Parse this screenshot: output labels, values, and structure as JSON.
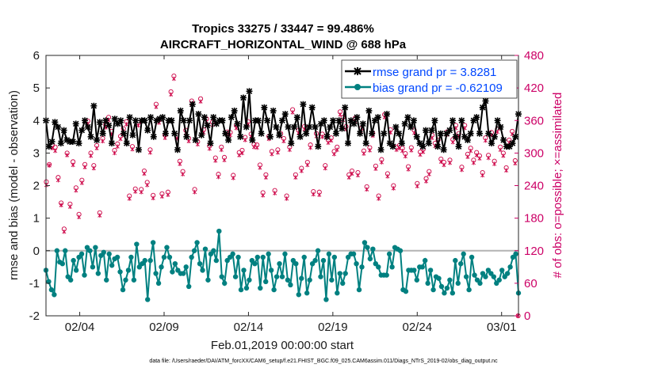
{
  "chart_data": {
    "type": "line",
    "title_line1": "Tropics 33275 / 33447 = 99.486%",
    "title_line2": "AIRCRAFT_HORIZONTAL_WIND @ 688 hPa",
    "xlabel": "Feb.01,2019 00:00:00 start",
    "ylabel_left": "rmse and bias (model - observation)",
    "ylabel_right": "# of obs: o=possible; ×=assimilated",
    "footer": "data file: /Users/raeder/DAI/ATM_forcXX/CAM6_setup/f.e21.FHIST_BGC.f09_025.CAM6assim.011/Diags_NTrS_2019-02/obs_diag_output.nc",
    "xlim": [
      1,
      29
    ],
    "ylim_left": [
      -2,
      6
    ],
    "ylim_right": [
      0,
      480
    ],
    "x_ticks": [
      3,
      8,
      13,
      18,
      23,
      28
    ],
    "x_tick_labels": [
      "02/04",
      "02/09",
      "02/14",
      "02/19",
      "02/24",
      "03/01"
    ],
    "y_left_ticks": [
      -2,
      -1,
      0,
      1,
      2,
      3,
      4,
      5,
      6
    ],
    "y_right_ticks": [
      0,
      60,
      120,
      180,
      240,
      300,
      360,
      420,
      480
    ],
    "colors": {
      "rmse": "#000000",
      "bias": "#008080",
      "obs": "#cc0044",
      "legend_text": "#0047ff",
      "zero_line": "#b3b3b3"
    },
    "series": [
      {
        "name": "rmse grand pr = 3.8281",
        "axis": "left",
        "values": [
          4.0,
          3.2,
          3.35,
          3.95,
          3.8,
          3.3,
          3.7,
          3.4,
          3.35,
          3.35,
          3.9,
          3.3,
          3.7,
          4.0,
          3.8,
          3.5,
          4.45,
          3.4,
          3.95,
          3.6,
          4.0,
          3.85,
          3.3,
          4.05,
          3.9,
          4.0,
          3.6,
          3.3,
          4.1,
          3.55,
          4.0,
          3.1,
          4.0,
          4.0,
          3.7,
          4.1,
          3.5,
          4.0,
          4.05,
          4.1,
          3.6,
          4.0,
          4.0,
          3.6,
          3.1,
          4.3,
          4.0,
          3.5,
          4.0,
          4.5,
          3.4,
          4.2,
          3.55,
          4.1,
          3.85,
          3.3,
          4.1,
          3.9,
          4.0,
          4.0,
          3.6,
          3.4,
          4.1,
          4.3,
          3.9,
          3.5,
          4.7,
          3.8,
          4.9,
          3.4,
          4.0,
          4.0,
          3.6,
          4.4,
          4.0,
          3.5,
          4.3,
          3.8,
          3.55,
          4.0,
          4.2,
          3.8,
          3.3,
          3.8,
          4.1,
          3.5,
          4.5,
          3.6,
          3.8,
          4.4,
          3.8,
          3.2,
          3.9,
          4.0,
          3.5,
          3.8,
          4.0,
          3.6,
          4.0,
          3.75,
          4.4,
          3.3,
          4.0,
          3.9,
          4.1,
          3.6,
          3.9,
          3.3,
          4.3,
          3.6,
          4.0,
          4.1,
          3.1,
          3.6,
          4.2,
          3.3,
          3.2,
          3.8,
          3.6,
          3.3,
          3.9,
          4.1,
          3.8,
          4.0,
          3.5,
          3.3,
          3.2,
          3.7,
          3.3,
          3.7,
          4.0,
          3.2,
          3.6,
          3.1,
          3.6,
          3.7,
          4.0,
          3.5,
          3.2,
          4.0,
          3.5,
          3.4,
          3.6,
          4.0,
          4.1,
          3.6,
          4.4,
          4.6,
          3.6,
          3.3,
          3.5,
          4.0,
          3.8,
          3.4,
          3.2,
          3.2,
          3.3,
          3.5,
          4.2
        ]
      },
      {
        "name": "bias grand pr = -0.62109",
        "axis": "left",
        "values": [
          -0.6,
          -0.95,
          -1.2,
          -1.35,
          0.0,
          -0.35,
          -0.4,
          0.0,
          -0.8,
          -0.9,
          -0.3,
          -0.6,
          -0.2,
          -0.1,
          -0.75,
          0.1,
          0.0,
          -0.5,
          0.1,
          -0.7,
          -0.15,
          -0.05,
          -0.9,
          -0.1,
          -0.45,
          -0.25,
          -0.2,
          -0.65,
          -1.2,
          -0.9,
          -0.6,
          -0.2,
          -0.9,
          0.2,
          -0.5,
          -0.4,
          -0.3,
          -1.5,
          -0.3,
          0.25,
          -0.7,
          -1.0,
          -0.5,
          -0.2,
          0.1,
          -0.2,
          -0.65,
          -0.4,
          -0.6,
          -0.7,
          -0.7,
          -0.5,
          -1.1,
          -0.2,
          0.0,
          0.25,
          -0.4,
          -0.6,
          0.05,
          -0.9,
          -0.1,
          0.0,
          -0.3,
          0.6,
          -0.8,
          -1.0,
          -0.3,
          -0.2,
          -0.1,
          -0.8,
          -0.2,
          -1.2,
          -0.6,
          -1.15,
          -0.9,
          -0.3,
          -0.4,
          -0.2,
          -1.15,
          -0.2,
          -0.95,
          -0.1,
          -0.6,
          -1.2,
          -0.8,
          -0.4,
          -0.8,
          -0.1,
          -0.9,
          -1.05,
          -0.3,
          -0.4,
          -1.35,
          -0.85,
          -0.2,
          -1.3,
          -0.9,
          -0.4,
          -0.3,
          0.0,
          -0.8,
          -0.3,
          -1.5,
          -0.1,
          -0.9,
          -0.2,
          -1.3,
          -0.7,
          -1.0,
          -0.7,
          -0.2,
          -0.1,
          -0.1,
          -0.4,
          -1.2,
          -0.5,
          0.25,
          0.1,
          -0.25,
          0.05,
          -0.4,
          -0.5,
          -0.75,
          -0.75,
          -0.75,
          -0.1,
          -0.5,
          0.1,
          0.05,
          0.0,
          -1.2,
          -1.25,
          -0.6,
          -0.6,
          -0.6,
          -0.9,
          -0.5,
          -0.5,
          -0.3,
          -1.0,
          -0.6,
          -1.2,
          -0.8,
          -0.85,
          -1.1,
          -1.3,
          -1.15,
          -0.9,
          -1.3,
          -0.3,
          -1.0,
          -0.4,
          -0.1,
          -0.8,
          -1.2,
          -0.2,
          -0.75,
          -0.9,
          -1.0,
          -0.7,
          -0.8,
          -0.6,
          -0.7,
          -0.8,
          -1.0,
          -0.9,
          -0.6,
          -0.8,
          -0.7,
          -0.5,
          -0.2,
          -0.1,
          -1.3
        ]
      },
      {
        "name": "possible",
        "axis": "right",
        "values": [
          247,
          279,
          314,
          311,
          255,
          208,
          160,
          300,
          206,
          284,
          236,
          187,
          250,
          279,
          359,
          300,
          277,
          314,
          190,
          327,
          352,
          366,
          340,
          305,
          317,
          331,
          345,
          358,
          221,
          312,
          234,
          356,
          233,
          267,
          246,
          306,
          222,
          390,
          361,
          225,
          333,
          228,
          413,
          442,
          332,
          285,
          266,
          342,
          327,
          396,
          233,
          321,
          400,
          343,
          363,
          313,
          357,
          291,
          261,
          311,
          292,
          339,
          338,
          259,
          351,
          301,
          305,
          329,
          358,
          335,
          316,
          315,
          278,
          227,
          260,
          331,
          303,
          231,
          306,
          336,
          327,
          221,
          311,
          380,
          260,
          342,
          272,
          349,
          283,
          315,
          229,
          336,
          228,
          335,
          277,
          324,
          328,
          303,
          311,
          376,
          366,
          349,
          260,
          267,
          364,
          264,
          345,
          304,
          238,
          310,
          337,
          276,
          221,
          288,
          371,
          262,
          343,
          240,
          311,
          314,
          309,
          299,
          275,
          310,
          342,
          244,
          302,
          307,
          253,
          266,
          333,
          318,
          324,
          289,
          283,
          339,
          287,
          325,
          351,
          336,
          274,
          351,
          298,
          309,
          287,
          301,
          295,
          264,
          328,
          296,
          338,
          285,
          344,
          311,
          300,
          273,
          324,
          340,
          286,
          0
        ]
      },
      {
        "name": "assimilated",
        "axis": "right",
        "values": [
          241,
          277,
          309,
          304,
          250,
          204,
          155,
          296,
          201,
          278,
          231,
          182,
          245,
          274,
          354,
          295,
          272,
          309,
          185,
          322,
          347,
          361,
          335,
          300,
          312,
          326,
          340,
          353,
          216,
          307,
          229,
          351,
          228,
          262,
          241,
          301,
          217,
          385,
          356,
          220,
          328,
          223,
          408,
          437,
          327,
          280,
          261,
          337,
          322,
          391,
          228,
          316,
          395,
          338,
          358,
          308,
          352,
          286,
          256,
          306,
          287,
          334,
          333,
          254,
          346,
          296,
          300,
          324,
          353,
          330,
          311,
          310,
          273,
          222,
          255,
          326,
          298,
          226,
          301,
          331,
          322,
          216,
          306,
          375,
          255,
          337,
          267,
          344,
          278,
          310,
          224,
          331,
          223,
          330,
          272,
          319,
          323,
          298,
          306,
          371,
          361,
          344,
          255,
          262,
          359,
          259,
          340,
          299,
          233,
          305,
          332,
          271,
          216,
          283,
          366,
          257,
          338,
          235,
          306,
          309,
          304,
          294,
          270,
          305,
          337,
          239,
          297,
          302,
          248,
          261,
          328,
          313,
          319,
          284,
          278,
          334,
          282,
          320,
          346,
          331,
          269,
          346,
          293,
          304,
          282,
          296,
          290,
          259,
          323,
          291,
          333,
          280,
          339,
          306,
          295,
          268,
          319,
          335,
          281,
          0
        ]
      }
    ]
  }
}
